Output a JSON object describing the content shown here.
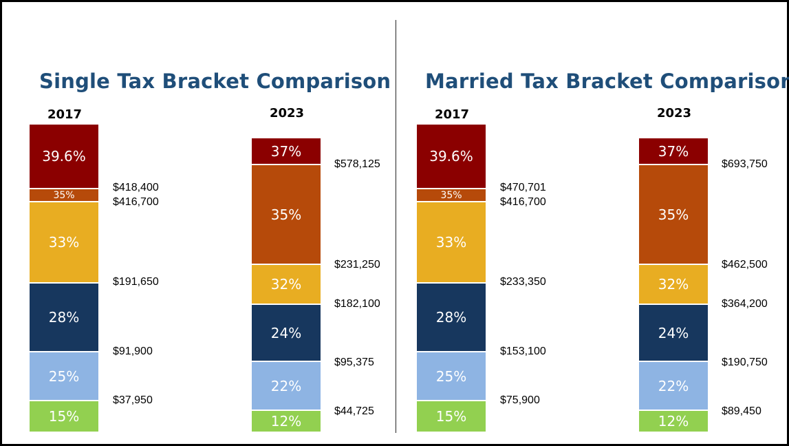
{
  "chart_data": [
    {
      "type": "bar",
      "subtype": "stacked-bracket",
      "title": "Single Tax Bracket Comparison",
      "columns": [
        {
          "year": "2017",
          "brackets": [
            {
              "rate": "15%",
              "color": "#92D050"
            },
            {
              "rate": "25%",
              "color": "#8EB4E3"
            },
            {
              "rate": "28%",
              "color": "#17375E"
            },
            {
              "rate": "33%",
              "color": "#E8AD22"
            },
            {
              "rate": "35%",
              "color": "#B64A0A"
            },
            {
              "rate": "39.6%",
              "color": "#8B0000"
            }
          ],
          "thresholds": [
            "$37,950",
            "$91,900",
            "$191,650",
            "$416,700",
            "$418,400"
          ]
        },
        {
          "year": "2023",
          "brackets": [
            {
              "rate": "12%",
              "color": "#92D050"
            },
            {
              "rate": "22%",
              "color": "#8EB4E3"
            },
            {
              "rate": "24%",
              "color": "#17375E"
            },
            {
              "rate": "32%",
              "color": "#E8AD22"
            },
            {
              "rate": "35%",
              "color": "#B64A0A"
            },
            {
              "rate": "37%",
              "color": "#8B0000"
            }
          ],
          "thresholds": [
            "$44,725",
            "$95,375",
            "$182,100",
            "$231,250",
            "$578,125"
          ]
        }
      ]
    },
    {
      "type": "bar",
      "subtype": "stacked-bracket",
      "title": "Married Tax Bracket Comparison",
      "columns": [
        {
          "year": "2017",
          "brackets": [
            {
              "rate": "15%",
              "color": "#92D050"
            },
            {
              "rate": "25%",
              "color": "#8EB4E3"
            },
            {
              "rate": "28%",
              "color": "#17375E"
            },
            {
              "rate": "33%",
              "color": "#E8AD22"
            },
            {
              "rate": "35%",
              "color": "#B64A0A"
            },
            {
              "rate": "39.6%",
              "color": "#8B0000"
            }
          ],
          "thresholds": [
            "$75,900",
            "$153,100",
            "$233,350",
            "$416,700",
            "$470,701"
          ]
        },
        {
          "year": "2023",
          "brackets": [
            {
              "rate": "12%",
              "color": "#92D050"
            },
            {
              "rate": "22%",
              "color": "#8EB4E3"
            },
            {
              "rate": "24%",
              "color": "#17375E"
            },
            {
              "rate": "32%",
              "color": "#E8AD22"
            },
            {
              "rate": "35%",
              "color": "#B64A0A"
            },
            {
              "rate": "37%",
              "color": "#8B0000"
            }
          ],
          "thresholds": [
            "$89,450",
            "$190,750",
            "$364,200",
            "$462,500",
            "$693,750"
          ]
        }
      ]
    }
  ]
}
